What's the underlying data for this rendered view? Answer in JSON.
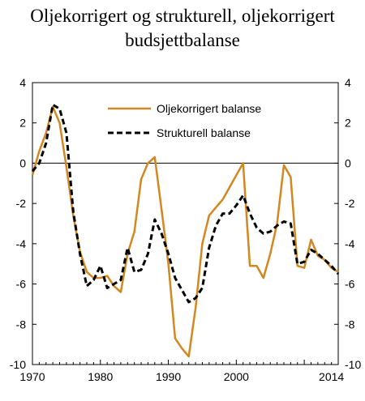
{
  "title": {
    "line1": "Oljekorrigert og strukturell, oljekorrigert",
    "line2": "budsjettbalanse"
  },
  "chart_data": {
    "type": "line",
    "title": "Oljekorrigert og strukturell, oljekorrigert budsjettbalanse",
    "xlabel": "",
    "ylabel": "",
    "xlim": [
      1970,
      2015
    ],
    "ylim": [
      -10,
      4
    ],
    "x_ticks": [
      1970,
      1980,
      1990,
      2000,
      2014
    ],
    "y_ticks": [
      4,
      2,
      0,
      -2,
      -4,
      -6,
      -8,
      -10
    ],
    "legend_position": "top-right",
    "grid": false,
    "series": [
      {
        "name": "Oljekorrigert balanse",
        "color": "#d4861f",
        "style": "solid",
        "x": [
          1970,
          1971,
          1972,
          1973,
          1974,
          1975,
          1976,
          1977,
          1978,
          1979,
          1980,
          1981,
          1982,
          1983,
          1984,
          1985,
          1986,
          1987,
          1988,
          1989,
          1990,
          1991,
          1992,
          1993,
          1994,
          1995,
          1996,
          1997,
          1998,
          1999,
          2000,
          2001,
          2002,
          2003,
          2004,
          2005,
          2006,
          2007,
          2008,
          2009,
          2010,
          2011,
          2012,
          2013,
          2014,
          2015
        ],
        "y": [
          -0.6,
          0.6,
          1.5,
          2.8,
          2.0,
          -0.2,
          -2.6,
          -4.4,
          -5.4,
          -5.7,
          -5.7,
          -5.6,
          -6.1,
          -6.4,
          -4.5,
          -3.4,
          -0.8,
          0.0,
          0.3,
          -2.3,
          -5.0,
          -8.7,
          -9.2,
          -9.6,
          -7.2,
          -4.0,
          -2.6,
          -2.2,
          -1.8,
          -1.2,
          -0.6,
          0.0,
          -5.1,
          -5.1,
          -5.7,
          -4.5,
          -3.0,
          -0.1,
          -0.7,
          -5.1,
          -5.2,
          -3.8,
          -4.6,
          -4.8,
          -5.2,
          -5.4
        ]
      },
      {
        "name": "Strukturell balanse",
        "color": "#000000",
        "style": "dashed",
        "x": [
          1970,
          1971,
          1972,
          1973,
          1974,
          1975,
          1976,
          1977,
          1978,
          1979,
          1980,
          1981,
          1982,
          1983,
          1984,
          1985,
          1986,
          1987,
          1988,
          1989,
          1990,
          1991,
          1992,
          1993,
          1994,
          1995,
          1996,
          1997,
          1998,
          1999,
          2000,
          2001,
          2002,
          2003,
          2004,
          2005,
          2006,
          2007,
          2008,
          2009,
          2010,
          2011,
          2012,
          2013,
          2014,
          2015
        ],
        "y": [
          -0.4,
          0.0,
          1.0,
          2.9,
          2.7,
          1.5,
          -2.4,
          -4.5,
          -6.1,
          -5.8,
          -5.1,
          -6.2,
          -6.0,
          -5.8,
          -4.2,
          -5.4,
          -5.3,
          -4.5,
          -2.8,
          -3.5,
          -4.5,
          -5.7,
          -6.3,
          -6.9,
          -6.7,
          -6.2,
          -4.2,
          -3.1,
          -2.5,
          -2.5,
          -2.1,
          -1.6,
          -2.5,
          -3.2,
          -3.5,
          -3.4,
          -3.1,
          -2.9,
          -3.0,
          -5.0,
          -4.9,
          -4.3,
          -4.5,
          -4.8,
          -5.1,
          -5.5
        ]
      }
    ]
  }
}
